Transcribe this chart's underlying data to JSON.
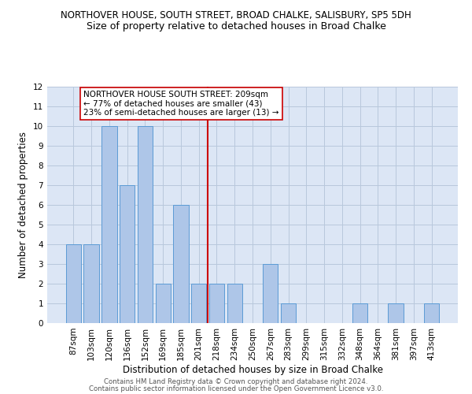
{
  "title": "NORTHOVER HOUSE, SOUTH STREET, BROAD CHALKE, SALISBURY, SP5 5DH",
  "subtitle": "Size of property relative to detached houses in Broad Chalke",
  "xlabel": "Distribution of detached houses by size in Broad Chalke",
  "ylabel": "Number of detached properties",
  "categories": [
    "87sqm",
    "103sqm",
    "120sqm",
    "136sqm",
    "152sqm",
    "169sqm",
    "185sqm",
    "201sqm",
    "218sqm",
    "234sqm",
    "250sqm",
    "267sqm",
    "283sqm",
    "299sqm",
    "315sqm",
    "332sqm",
    "348sqm",
    "364sqm",
    "381sqm",
    "397sqm",
    "413sqm"
  ],
  "values": [
    4,
    4,
    10,
    7,
    10,
    2,
    6,
    2,
    2,
    2,
    0,
    3,
    1,
    0,
    0,
    0,
    1,
    0,
    1,
    0,
    1
  ],
  "bar_color": "#aec6e8",
  "bar_edgecolor": "#5b9bd5",
  "vline_x": 7.5,
  "vline_color": "#cc0000",
  "annotation_text": "NORTHOVER HOUSE SOUTH STREET: 209sqm\n← 77% of detached houses are smaller (43)\n23% of semi-detached houses are larger (13) →",
  "annotation_box_color": "#ffffff",
  "annotation_box_edgecolor": "#cc0000",
  "ylim": [
    0,
    12
  ],
  "yticks": [
    0,
    1,
    2,
    3,
    4,
    5,
    6,
    7,
    8,
    9,
    10,
    11,
    12
  ],
  "background_color": "#dce6f5",
  "grid_color": "#b8c8dc",
  "footer_line1": "Contains HM Land Registry data © Crown copyright and database right 2024.",
  "footer_line2": "Contains public sector information licensed under the Open Government Licence v3.0.",
  "title_fontsize": 8.5,
  "subtitle_fontsize": 9,
  "ylabel_fontsize": 8.5,
  "xlabel_fontsize": 8.5,
  "tick_fontsize": 7.5,
  "annot_fontsize": 7.5,
  "footer_fontsize": 6.2
}
